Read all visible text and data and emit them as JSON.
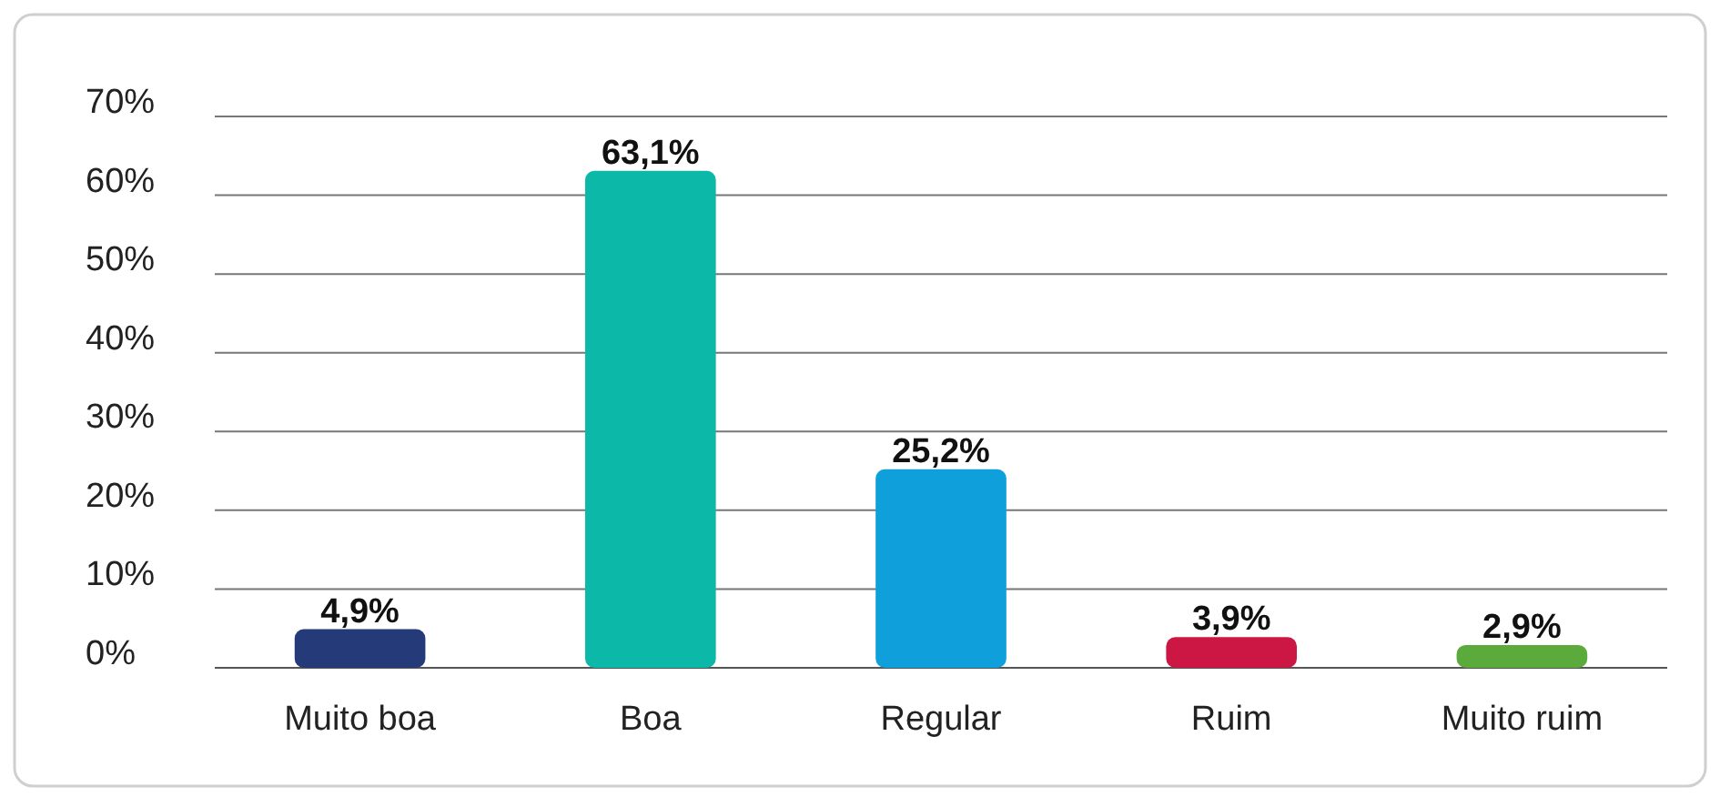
{
  "chart_data": {
    "type": "bar",
    "categories": [
      "Muito boa",
      "Boa",
      "Regular",
      "Ruim",
      "Muito ruim"
    ],
    "values": [
      4.9,
      63.1,
      25.2,
      3.9,
      2.9
    ],
    "colors": [
      "#253a78",
      "#0cb8a8",
      "#0fa0dc",
      "#cc1744",
      "#5aab3c"
    ],
    "value_labels": [
      "4,9%",
      "63,1%",
      "25,2%",
      "3,9%",
      "2,9%"
    ],
    "ylim": [
      0,
      70
    ],
    "yticks": [
      {
        "value": 0,
        "label": "0%"
      },
      {
        "value": 10,
        "label": "10%"
      },
      {
        "value": 20,
        "label": "20%"
      },
      {
        "value": 30,
        "label": "30%"
      },
      {
        "value": 40,
        "label": "40%"
      },
      {
        "value": 50,
        "label": "50%"
      },
      {
        "value": 60,
        "label": "60%"
      },
      {
        "value": 70,
        "label": "70%"
      }
    ],
    "grid": "y"
  }
}
